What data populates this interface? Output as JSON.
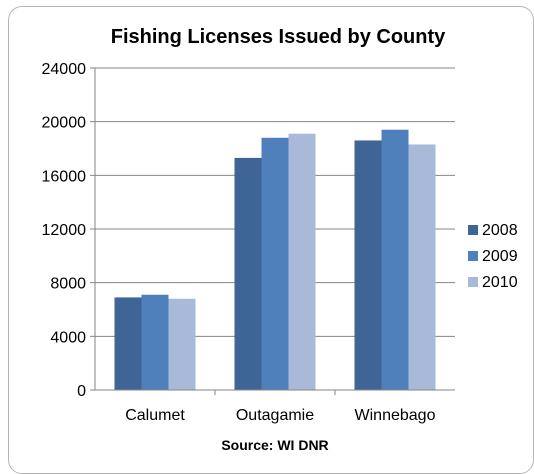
{
  "chart_data": {
    "type": "bar",
    "title": "Fishing Licenses Issued by County",
    "xlabel": "Source: WI DNR",
    "ylabel": "",
    "categories": [
      "Calumet",
      "Outagamie",
      "Winnebago"
    ],
    "series": [
      {
        "name": "2008",
        "values": [
          6900,
          17300,
          18600
        ],
        "color": "#3f6596"
      },
      {
        "name": "2009",
        "values": [
          7100,
          18800,
          19400
        ],
        "color": "#4f80bc"
      },
      {
        "name": "2010",
        "values": [
          6800,
          19100,
          18300
        ],
        "color": "#a9b9d8"
      }
    ],
    "ylim": [
      0,
      24000
    ],
    "yticks": [
      "0",
      "4000",
      "8000",
      "12000",
      "16000",
      "20000",
      "24000"
    ],
    "grid": true,
    "legend_position": "right"
  }
}
